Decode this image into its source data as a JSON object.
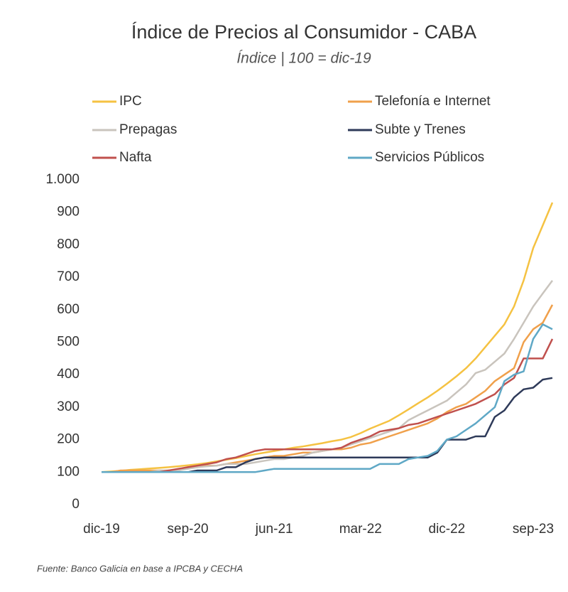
{
  "chart_data": {
    "type": "line",
    "title": "Índice de Precios al Consumidor - CABA",
    "subtitle": "Índice | 100 = dic-19",
    "source": "Fuente: Banco Galicia en base a IPCBA y CECHA",
    "categories": [
      "dic-19",
      null,
      null,
      null,
      null,
      null,
      null,
      null,
      null,
      "sep-20",
      null,
      null,
      null,
      null,
      null,
      null,
      null,
      null,
      "jun-21",
      null,
      null,
      null,
      null,
      null,
      null,
      null,
      null,
      "mar-22",
      null,
      null,
      null,
      null,
      null,
      null,
      null,
      null,
      "dic-22",
      null,
      null,
      null,
      null,
      null,
      null,
      null,
      null,
      "sep-23",
      null,
      null
    ],
    "ylim": [
      0,
      1000
    ],
    "yticks": [
      0,
      100,
      200,
      300,
      400,
      500,
      600,
      700,
      800,
      900,
      {
        "value": 1000,
        "label": "1.000"
      }
    ],
    "grid": false,
    "series": [
      {
        "name": "IPC",
        "color": "#f5c242",
        "values": [
          100,
          102,
          104,
          107,
          109,
          111,
          113,
          115,
          118,
          121,
          124,
          128,
          133,
          138,
          143,
          149,
          155,
          160,
          165,
          170,
          175,
          179,
          184,
          189,
          195,
          200,
          208,
          220,
          234,
          246,
          258,
          275,
          293,
          312,
          330,
          350,
          372,
          395,
          420,
          450,
          485,
          520,
          555,
          610,
          690,
          790,
          860,
          930
        ]
      },
      {
        "name": "Telefonía e Internet",
        "color": "#f0a04b",
        "values": [
          100,
          100,
          105,
          105,
          105,
          105,
          105,
          105,
          105,
          115,
          115,
          120,
          120,
          125,
          130,
          135,
          140,
          145,
          150,
          150,
          155,
          160,
          160,
          165,
          170,
          170,
          175,
          185,
          190,
          200,
          210,
          220,
          230,
          240,
          250,
          265,
          285,
          300,
          310,
          330,
          350,
          380,
          400,
          420,
          500,
          540,
          560,
          615
        ]
      },
      {
        "name": "Prepagas",
        "color": "#c9c4bd",
        "values": [
          100,
          100,
          100,
          100,
          100,
          100,
          105,
          105,
          105,
          110,
          115,
          118,
          120,
          125,
          125,
          125,
          130,
          135,
          140,
          140,
          145,
          150,
          160,
          165,
          170,
          175,
          185,
          195,
          205,
          215,
          225,
          235,
          260,
          275,
          290,
          305,
          320,
          345,
          370,
          405,
          415,
          440,
          465,
          510,
          560,
          610,
          650,
          690
        ]
      },
      {
        "name": "Subte y Trenes",
        "color": "#2e3a59",
        "values": [
          100,
          100,
          100,
          100,
          100,
          100,
          100,
          100,
          100,
          100,
          105,
          105,
          105,
          115,
          115,
          130,
          140,
          145,
          145,
          145,
          145,
          145,
          145,
          145,
          145,
          145,
          145,
          145,
          145,
          145,
          145,
          145,
          145,
          145,
          145,
          160,
          200,
          200,
          200,
          210,
          210,
          270,
          290,
          330,
          355,
          360,
          385,
          390
        ]
      },
      {
        "name": "Nafta",
        "color": "#c0504d",
        "values": [
          100,
          100,
          100,
          100,
          100,
          100,
          100,
          105,
          110,
          115,
          120,
          125,
          130,
          140,
          145,
          155,
          165,
          170,
          170,
          170,
          170,
          170,
          170,
          170,
          170,
          175,
          190,
          200,
          210,
          225,
          230,
          235,
          245,
          250,
          260,
          270,
          280,
          290,
          300,
          310,
          325,
          340,
          370,
          390,
          450,
          450,
          450,
          510
        ]
      },
      {
        "name": "Servicios Públicos",
        "color": "#5fa8c6",
        "values": [
          100,
          100,
          100,
          100,
          100,
          100,
          100,
          100,
          100,
          100,
          100,
          100,
          100,
          100,
          100,
          100,
          100,
          105,
          110,
          110,
          110,
          110,
          110,
          110,
          110,
          110,
          110,
          110,
          110,
          125,
          125,
          125,
          140,
          145,
          150,
          165,
          200,
          210,
          230,
          250,
          275,
          300,
          380,
          400,
          410,
          510,
          555,
          540
        ]
      }
    ]
  }
}
